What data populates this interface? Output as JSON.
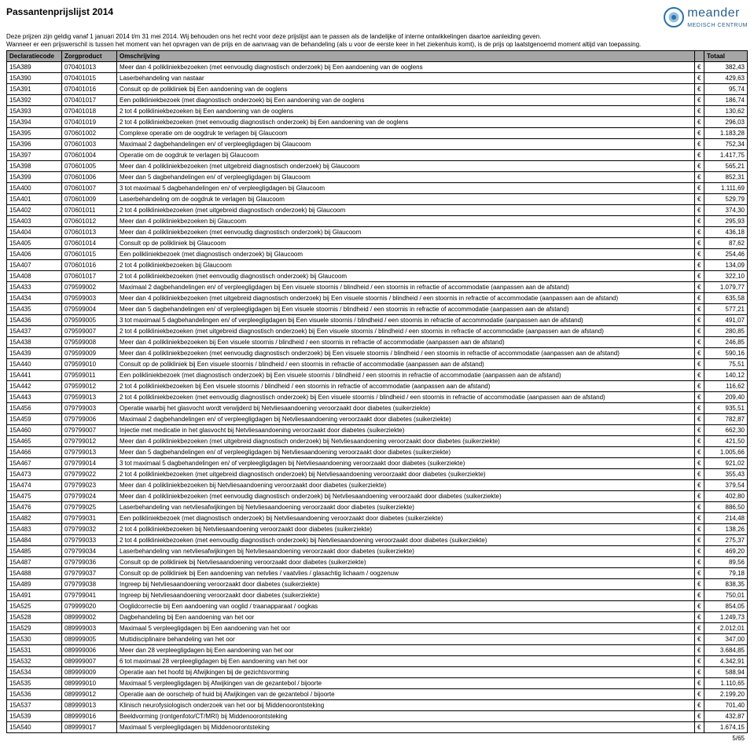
{
  "title": "Passantenprijslijst 2014",
  "logo": {
    "brand": "meander",
    "sub": "MEDISCH CENTRUM"
  },
  "intro_lines": [
    "Deze prijzen zijn geldig vanaf 1 januari 2014 t/m 31 mei 2014. Wij behouden ons het recht voor deze prijslijst aan te passen als de landelijke of interne ontwikkelingen daartoe aanleiding geven.",
    "Wanneer er een prijswerschil is tussen het moment van het opvragen van de prijs en de aanvraag van de behandeling (als u voor de eerste keer in het ziekenhuis komt), is de prijs op laatstgenoemd moment altijd van toepassing."
  ],
  "columns": [
    "Declaratiecode",
    "Zorgproduct",
    "Omschrijving",
    "",
    "Totaal"
  ],
  "currency": "€",
  "page_footer": "5/65",
  "rows": [
    [
      "15A389",
      "070401013",
      "Meer dan 4 polikliniekbezoeken (met eenvoudig diagnostisch onderzoek) bij Een aandoening van de ooglens",
      "382,43"
    ],
    [
      "15A390",
      "070401015",
      "Laserbehandeling van nastaar",
      "429,63"
    ],
    [
      "15A391",
      "070401016",
      "Consult op de polikliniek bij Een aandoening van de ooglens",
      "95,74"
    ],
    [
      "15A392",
      "070401017",
      "Een polikliniekbezoek (met diagnostisch onderzoek) bij Een aandoening van de ooglens",
      "186,74"
    ],
    [
      "15A393",
      "070401018",
      "2 tot 4 polikliniekbezoeken bij Een aandoening van de ooglens",
      "130,62"
    ],
    [
      "15A394",
      "070401019",
      "2 tot 4 polikliniekbezoeken (met eenvoudig diagnostisch onderzoek) bij Een aandoening van de ooglens",
      "296,03"
    ],
    [
      "15A395",
      "070601002",
      "Complexe operatie om de oogdruk te verlagen bij Glaucoom",
      "1.183,28"
    ],
    [
      "15A396",
      "070601003",
      "Maximaal 2 dagbehandelingen en/ of verpleegligdagen bij Glaucoom",
      "752,34"
    ],
    [
      "15A397",
      "070601004",
      "Operatie om de oogdruk te verlagen bij Glaucoom",
      "1.417,75"
    ],
    [
      "15A398",
      "070601005",
      "Meer dan 4 polikliniekbezoeken (met uitgebreid diagnostisch onderzoek) bij Glaucoom",
      "565,21"
    ],
    [
      "15A399",
      "070601006",
      "Meer dan 5 dagbehandelingen en/ of verpleegligdagen bij Glaucoom",
      "852,31"
    ],
    [
      "15A400",
      "070601007",
      "3 tot maximaal 5 dagbehandelingen en/ of verpleegligdagen bij Glaucoom",
      "1.111,69"
    ],
    [
      "15A401",
      "070601009",
      "Laserbehandeling om de oogdruk te verlagen bij Glaucoom",
      "529,79"
    ],
    [
      "15A402",
      "070601011",
      "2 tot 4 polikliniekbezoeken (met uitgebreid diagnostisch onderzoek) bij Glaucoom",
      "374,30"
    ],
    [
      "15A403",
      "070601012",
      "Meer dan 4 polikliniekbezoeken bij Glaucoom",
      "295,93"
    ],
    [
      "15A404",
      "070601013",
      "Meer dan 4 polikliniekbezoeken (met eenvoudig diagnostisch onderzoek) bij Glaucoom",
      "436,18"
    ],
    [
      "15A405",
      "070601014",
      "Consult op de polikliniek bij Glaucoom",
      "87,62"
    ],
    [
      "15A406",
      "070601015",
      "Een polikliniekbezoek (met diagnostisch onderzoek) bij Glaucoom",
      "254,46"
    ],
    [
      "15A407",
      "070601016",
      "2 tot 4 polikliniekbezoeken bij Glaucoom",
      "134,09"
    ],
    [
      "15A408",
      "070601017",
      "2 tot 4 polikliniekbezoeken (met eenvoudig diagnostisch onderzoek) bij Glaucoom",
      "322,10"
    ],
    [
      "15A433",
      "079599002",
      "Maximaal 2 dagbehandelingen en/ of verpleegligdagen bij Een visuele stoornis / blindheid / een stoornis in refractie of accommodatie (aanpassen aan de afstand)",
      "1.079,77"
    ],
    [
      "15A434",
      "079599003",
      "Meer dan 4 polikliniekbezoeken (met uitgebreid diagnostisch onderzoek) bij Een visuele stoornis / blindheid / een stoornis in refractie of accommodatie (aanpassen aan de afstand)",
      "635,58"
    ],
    [
      "15A435",
      "079599004",
      "Meer dan 5 dagbehandelingen en/ of verpleegligdagen bij Een visuele stoornis / blindheid / een stoornis in refractie of accommodatie (aanpassen aan de afstand)",
      "577,21"
    ],
    [
      "15A436",
      "079599005",
      "3 tot maximaal 5 dagbehandelingen en/ of verpleegligdagen bij Een visuele stoornis / blindheid / een stoornis in refractie of accommodatie (aanpassen aan de afstand)",
      "491,07"
    ],
    [
      "15A437",
      "079599007",
      "2 tot 4 polikliniekbezoeken (met uitgebreid diagnostisch onderzoek) bij Een visuele stoornis / blindheid / een stoornis in refractie of accommodatie (aanpassen aan de afstand)",
      "280,85"
    ],
    [
      "15A438",
      "079599008",
      "Meer dan 4 polikliniekbezoeken bij Een visuele stoornis / blindheid / een stoornis in refractie of accommodatie (aanpassen aan de afstand)",
      "246,85"
    ],
    [
      "15A439",
      "079599009",
      "Meer dan 4 polikliniekbezoeken (met eenvoudig diagnostisch onderzoek) bij Een visuele stoornis / blindheid / een stoornis in refractie of accommodatie (aanpassen aan de afstand)",
      "590,16"
    ],
    [
      "15A440",
      "079599010",
      "Consult op de polikliniek bij Een visuele stoornis / blindheid / een stoornis in refractie of accommodatie (aanpassen aan de afstand)",
      "75,51"
    ],
    [
      "15A441",
      "079599011",
      "Een polikliniekbezoek (met diagnostisch onderzoek) bij Een visuele stoornis / blindheid / een stoornis in refractie of accommodatie (aanpassen aan de afstand)",
      "140,12"
    ],
    [
      "15A442",
      "079599012",
      "2 tot 4 polikliniekbezoeken bij Een visuele stoornis / blindheid / een stoornis in refractie of accommodatie (aanpassen aan de afstand)",
      "116,62"
    ],
    [
      "15A443",
      "079599013",
      "2 tot 4 polikliniekbezoeken (met eenvoudig diagnostisch onderzoek) bij Een visuele stoornis / blindheid / een stoornis in refractie of accommodatie (aanpassen aan de afstand)",
      "209,40"
    ],
    [
      "15A456",
      "079799003",
      "Operatie waarbij het glasvocht wordt verwijderd bij Netvliesaandoening veroorzaakt door diabetes (suikerziekte)",
      "935,51"
    ],
    [
      "15A459",
      "079799006",
      "Maximaal 2 dagbehandelingen en/ of verpleegligdagen bij Netvliesaandoening veroorzaakt door diabetes (suikerziekte)",
      "782,87"
    ],
    [
      "15A460",
      "079799007",
      "Injectie met medicatie in het glasvocht bij Netvliesaandoening veroorzaakt door diabetes (suikerziekte)",
      "662,30"
    ],
    [
      "15A465",
      "079799012",
      "Meer dan 4 polikliniekbezoeken (met uitgebreid diagnostisch onderzoek) bij Netvliesaandoening veroorzaakt door diabetes (suikerziekte)",
      "421,50"
    ],
    [
      "15A466",
      "079799013",
      "Meer dan 5 dagbehandelingen en/ of verpleegligdagen bij Netvliesaandoening veroorzaakt door diabetes (suikerziekte)",
      "1.005,66"
    ],
    [
      "15A467",
      "079799014",
      "3 tot maximaal 5 dagbehandelingen en/ of verpleegligdagen bij Netvliesaandoening veroorzaakt door diabetes (suikerziekte)",
      "921,02"
    ],
    [
      "15A473",
      "079799022",
      "2 tot 4 polikliniekbezoeken (met uitgebreid diagnostisch onderzoek) bij Netvliesaandoening veroorzaakt door diabetes (suikerziekte)",
      "355,43"
    ],
    [
      "15A474",
      "079799023",
      "Meer dan 4 polikliniekbezoeken bij Netvliesaandoening veroorzaakt door diabetes (suikerziekte)",
      "379,54"
    ],
    [
      "15A475",
      "079799024",
      "Meer dan 4 polikliniekbezoeken (met eenvoudig diagnostisch onderzoek) bij Netvliesaandoening veroorzaakt door diabetes (suikerziekte)",
      "402,80"
    ],
    [
      "15A476",
      "079799025",
      "Laserbehandeling van netvliesafwijkingen bij Netvliesaandoening veroorzaakt door diabetes (suikerziekte)",
      "886,50"
    ],
    [
      "15A482",
      "079799031",
      "Een polikliniekbezoek (met diagnostisch onderzoek) bij Netvliesaandoening veroorzaakt door diabetes (suikerziekte)",
      "214,48"
    ],
    [
      "15A483",
      "079799032",
      "2 tot 4 polikliniekbezoeken bij Netvliesaandoening veroorzaakt door diabetes (suikerziekte)",
      "138,26"
    ],
    [
      "15A484",
      "079799033",
      "2 tot 4 polikliniekbezoeken (met eenvoudig diagnostisch onderzoek) bij Netvliesaandoening veroorzaakt door diabetes (suikerziekte)",
      "275,37"
    ],
    [
      "15A485",
      "079799034",
      "Laserbehandeling van netvliesafwijkingen bij Netvliesaandoening veroorzaakt door diabetes (suikerziekte)",
      "469,20"
    ],
    [
      "15A487",
      "079799036",
      "Consult op de polikliniek bij Netvliesaandoening veroorzaakt door diabetes (suikerziekte)",
      "89,56"
    ],
    [
      "15A488",
      "079799037",
      "Consult op de polikliniek bij Een aandoening van netvlies / vaatvlies / glasachtig lichaam / oogzenuw",
      "79,18"
    ],
    [
      "15A489",
      "079799038",
      "Ingreep bij Netvliesaandoening veroorzaakt door diabetes (suikerziekte)",
      "838,35"
    ],
    [
      "15A491",
      "079799041",
      "Ingreep bij Netvliesaandoening veroorzaakt door diabetes (suikerziekte)",
      "750,01"
    ],
    [
      "15A525",
      "079999020",
      "Ooglidcorrectie bij Een aandoening van ooglid / traanapparaat / oogkas",
      "854,05"
    ],
    [
      "15A528",
      "089999002",
      "Dagbehandeling bij Een aandoening van het oor",
      "1.249,73"
    ],
    [
      "15A529",
      "089999003",
      "Maximaal 5 verpleegligdagen bij Een aandoening van het oor",
      "2.012,01"
    ],
    [
      "15A530",
      "089999005",
      "Multidisciplinaire behandeling van het oor",
      "347,00"
    ],
    [
      "15A531",
      "089999006",
      "Meer dan 28 verpleegligdagen bij Een aandoening van het oor",
      "3.684,85"
    ],
    [
      "15A532",
      "089999007",
      "6 tot maximaal 28 verpleegligdagen bij Een aandoening van het oor",
      "4.342,91"
    ],
    [
      "15A534",
      "089999009",
      "Operatie aan het hoofd bij Afwijkingen bij de gezichtsvorming",
      "588,94"
    ],
    [
      "15A535",
      "089999010",
      "Maximaal 5 verpleegligdagen bij Afwijkingen van de gezantebol / bijoorte",
      "1.110,65"
    ],
    [
      "15A536",
      "089999012",
      "Operatie aan de oorschelp of huid bij Afwijkingen van de gezantebol / bijoorte",
      "2.199,20"
    ],
    [
      "15A537",
      "089999013",
      "Klinisch neurofysiologisch onderzoek van het oor bij Middenoorontsteking",
      "701,40"
    ],
    [
      "15A539",
      "089999016",
      "Beeldvorming (rontgenfoto/CT/MRI) bij Middenoorontsteking",
      "432,87"
    ],
    [
      "15A540",
      "089999017",
      "Maximaal 5 verpleegligdagen bij Middenoorontsteking",
      "1.674,15"
    ]
  ]
}
